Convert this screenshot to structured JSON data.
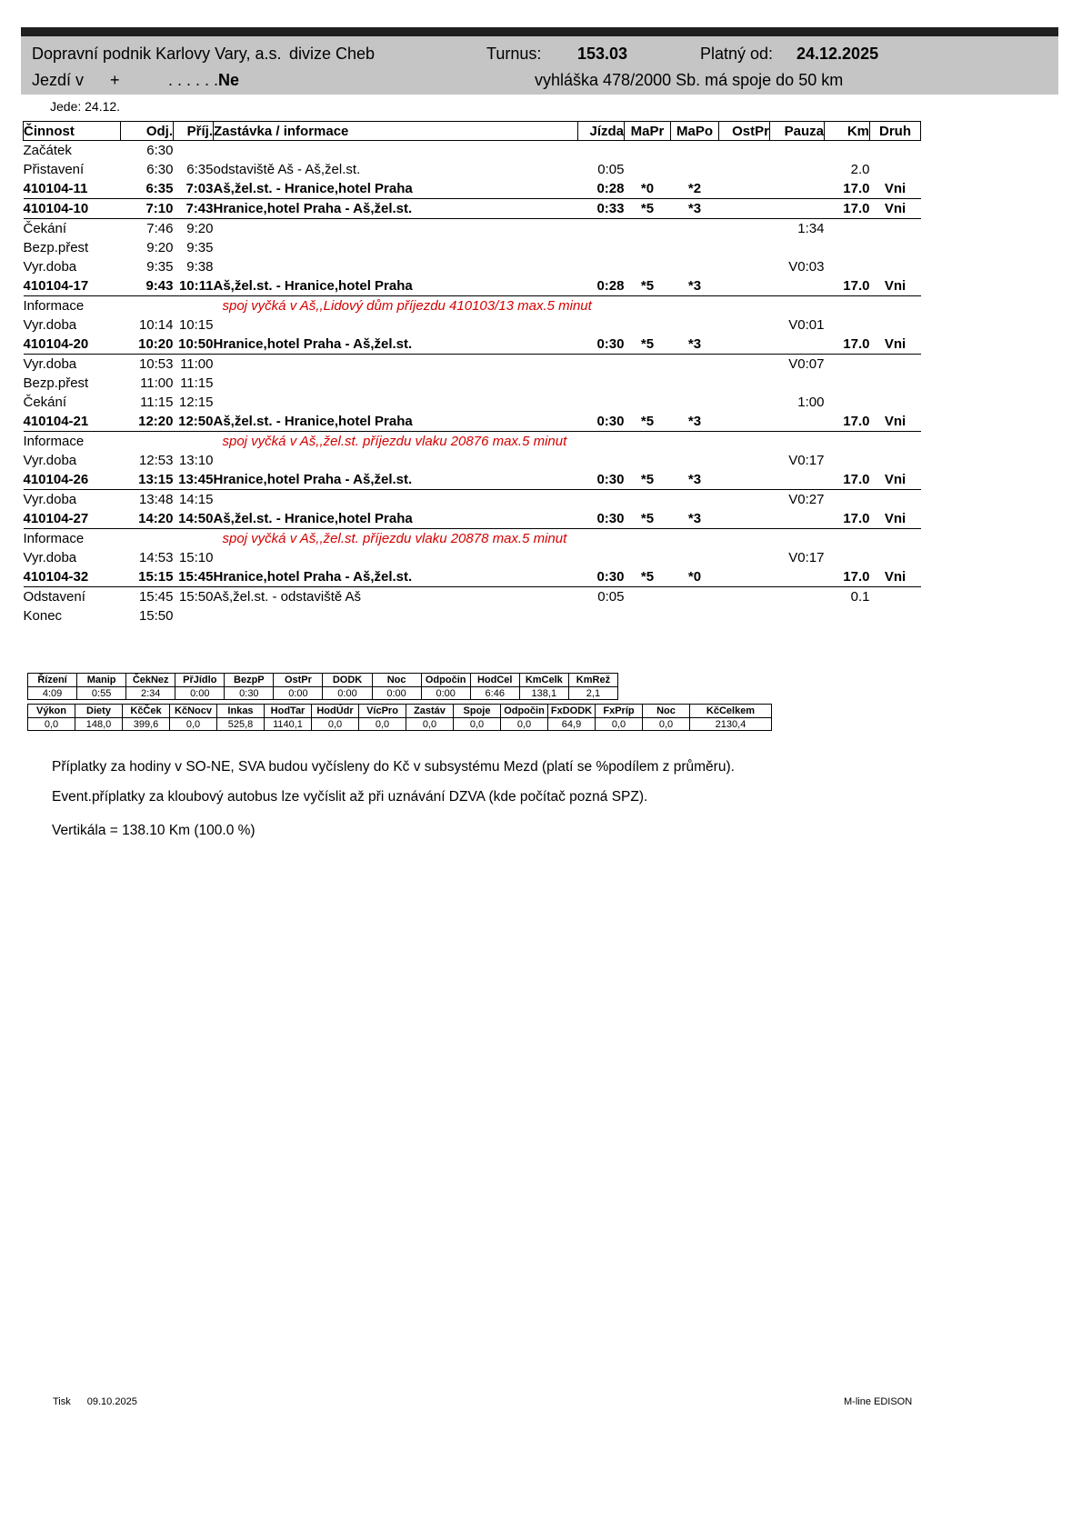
{
  "colors": {
    "header_bg": "#c5c5c5",
    "top_bar": "#1f1f1f",
    "info_red": "#d40000"
  },
  "header": {
    "company": "Dopravní podnik Karlovy Vary, a.s.",
    "division": "divize Cheb",
    "turnus_label": "Turnus:",
    "turnus_value": "153.03",
    "valid_label": "Platný od:",
    "valid_value": "24.12.2025",
    "runs_label": "Jezdí v",
    "runs_plus": "+",
    "runs_dots": ". . . . . .",
    "runs_days": "Ne",
    "decree": "vyhláška 478/2000 Sb. má spoje do 50 km",
    "operates": "Jede: 24.12."
  },
  "schedule": {
    "columns": [
      "Činnost",
      "Odj.",
      "Příj.",
      "Zastávka / informace",
      "Jízda",
      "MaPr",
      "MaPo",
      "OstPr",
      "Pauza",
      "Km",
      "Druh"
    ],
    "rows": [
      {
        "type": "plain",
        "cinnost": "Začátek",
        "odj": "6:30",
        "prij": "",
        "zastavka": "",
        "jizda": "",
        "mapr": "",
        "mapo": "",
        "ostpr": "",
        "pauza": "",
        "km": "",
        "druh": ""
      },
      {
        "type": "plain",
        "cinnost": "Přistavení",
        "odj": "6:30",
        "prij": "6:35",
        "zastavka": "odstaviště Aš - Aš,žel.st.",
        "jizda": "0:05",
        "mapr": "",
        "mapo": "",
        "ostpr": "",
        "pauza": "",
        "km": "2.0",
        "druh": ""
      },
      {
        "type": "trip",
        "cinnost": "410104-11",
        "odj": "6:35",
        "prij": "7:03",
        "zastavka": "Aš,žel.st. - Hranice,hotel Praha",
        "jizda": "0:28",
        "mapr": "*0",
        "mapo": "*2",
        "ostpr": "",
        "pauza": "",
        "km": "17.0",
        "druh": "Vni"
      },
      {
        "type": "trip",
        "cinnost": "410104-10",
        "odj": "7:10",
        "prij": "7:43",
        "zastavka": "Hranice,hotel Praha - Aš,žel.st.",
        "jizda": "0:33",
        "mapr": "*5",
        "mapo": "*3",
        "ostpr": "",
        "pauza": "",
        "km": "17.0",
        "druh": "Vni"
      },
      {
        "type": "plain",
        "cinnost": "Čekání",
        "odj": "7:46",
        "prij": "9:20",
        "zastavka": "",
        "jizda": "",
        "mapr": "",
        "mapo": "",
        "ostpr": "",
        "pauza": "1:34",
        "km": "",
        "druh": ""
      },
      {
        "type": "plain",
        "cinnost": "Bezp.přest",
        "odj": "9:20",
        "prij": "9:35",
        "zastavka": "",
        "jizda": "",
        "mapr": "",
        "mapo": "",
        "ostpr": "",
        "pauza": "",
        "km": "",
        "druh": ""
      },
      {
        "type": "plain",
        "cinnost": "Vyr.doba",
        "odj": "9:35",
        "prij": "9:38",
        "zastavka": "",
        "jizda": "",
        "mapr": "",
        "mapo": "",
        "ostpr": "",
        "pauza": "V0:03",
        "km": "",
        "druh": ""
      },
      {
        "type": "trip",
        "cinnost": "410104-17",
        "odj": "9:43",
        "prij": "10:11",
        "zastavka": "Aš,žel.st. - Hranice,hotel Praha",
        "jizda": "0:28",
        "mapr": "*5",
        "mapo": "*3",
        "ostpr": "",
        "pauza": "",
        "km": "17.0",
        "druh": "Vni"
      },
      {
        "type": "info",
        "cinnost": "Informace",
        "odj": "",
        "prij": "",
        "zastavka": "spoj vyčká v Aš,,Lidový dům příjezdu  410103/13 max.5 minut",
        "jizda": "",
        "mapr": "",
        "mapo": "",
        "ostpr": "",
        "pauza": "",
        "km": "",
        "druh": ""
      },
      {
        "type": "plain",
        "cinnost": "Vyr.doba",
        "odj": "10:14",
        "prij": "10:15",
        "zastavka": "",
        "jizda": "",
        "mapr": "",
        "mapo": "",
        "ostpr": "",
        "pauza": "V0:01",
        "km": "",
        "druh": ""
      },
      {
        "type": "trip",
        "cinnost": "410104-20",
        "odj": "10:20",
        "prij": "10:50",
        "zastavka": "Hranice,hotel Praha - Aš,žel.st.",
        "jizda": "0:30",
        "mapr": "*5",
        "mapo": "*3",
        "ostpr": "",
        "pauza": "",
        "km": "17.0",
        "druh": "Vni"
      },
      {
        "type": "plain",
        "cinnost": "Vyr.doba",
        "odj": "10:53",
        "prij": "11:00",
        "zastavka": "",
        "jizda": "",
        "mapr": "",
        "mapo": "",
        "ostpr": "",
        "pauza": "V0:07",
        "km": "",
        "druh": ""
      },
      {
        "type": "plain",
        "cinnost": "Bezp.přest",
        "odj": "11:00",
        "prij": "11:15",
        "zastavka": "",
        "jizda": "",
        "mapr": "",
        "mapo": "",
        "ostpr": "",
        "pauza": "",
        "km": "",
        "druh": ""
      },
      {
        "type": "plain",
        "cinnost": "Čekání",
        "odj": "11:15",
        "prij": "12:15",
        "zastavka": "",
        "jizda": "",
        "mapr": "",
        "mapo": "",
        "ostpr": "",
        "pauza": "1:00",
        "km": "",
        "druh": ""
      },
      {
        "type": "trip",
        "cinnost": "410104-21",
        "odj": "12:20",
        "prij": "12:50",
        "zastavka": "Aš,žel.st. - Hranice,hotel Praha",
        "jizda": "0:30",
        "mapr": "*5",
        "mapo": "*3",
        "ostpr": "",
        "pauza": "",
        "km": "17.0",
        "druh": "Vni"
      },
      {
        "type": "info",
        "cinnost": "Informace",
        "odj": "",
        "prij": "",
        "zastavka": "spoj vyčká v Aš,,žel.st. příjezdu vlaku 20876 max.5 minut",
        "jizda": "",
        "mapr": "",
        "mapo": "",
        "ostpr": "",
        "pauza": "",
        "km": "",
        "druh": ""
      },
      {
        "type": "plain",
        "cinnost": "Vyr.doba",
        "odj": "12:53",
        "prij": "13:10",
        "zastavka": "",
        "jizda": "",
        "mapr": "",
        "mapo": "",
        "ostpr": "",
        "pauza": "V0:17",
        "km": "",
        "druh": ""
      },
      {
        "type": "trip",
        "cinnost": "410104-26",
        "odj": "13:15",
        "prij": "13:45",
        "zastavka": "Hranice,hotel Praha - Aš,žel.st.",
        "jizda": "0:30",
        "mapr": "*5",
        "mapo": "*3",
        "ostpr": "",
        "pauza": "",
        "km": "17.0",
        "druh": "Vni"
      },
      {
        "type": "plain",
        "cinnost": "Vyr.doba",
        "odj": "13:48",
        "prij": "14:15",
        "zastavka": "",
        "jizda": "",
        "mapr": "",
        "mapo": "",
        "ostpr": "",
        "pauza": "V0:27",
        "km": "",
        "druh": ""
      },
      {
        "type": "trip",
        "cinnost": "410104-27",
        "odj": "14:20",
        "prij": "14:50",
        "zastavka": "Aš,žel.st. - Hranice,hotel Praha",
        "jizda": "0:30",
        "mapr": "*5",
        "mapo": "*3",
        "ostpr": "",
        "pauza": "",
        "km": "17.0",
        "druh": "Vni"
      },
      {
        "type": "info",
        "cinnost": "Informace",
        "odj": "",
        "prij": "",
        "zastavka": "spoj vyčká v Aš,,žel.st. příjezdu vlaku 20878 max.5 minut",
        "jizda": "",
        "mapr": "",
        "mapo": "",
        "ostpr": "",
        "pauza": "",
        "km": "",
        "druh": ""
      },
      {
        "type": "plain",
        "cinnost": "Vyr.doba",
        "odj": "14:53",
        "prij": "15:10",
        "zastavka": "",
        "jizda": "",
        "mapr": "",
        "mapo": "",
        "ostpr": "",
        "pauza": "V0:17",
        "km": "",
        "druh": ""
      },
      {
        "type": "trip",
        "cinnost": "410104-32",
        "odj": "15:15",
        "prij": "15:45",
        "zastavka": "Hranice,hotel Praha - Aš,žel.st.",
        "jizda": "0:30",
        "mapr": "*5",
        "mapo": "*0",
        "ostpr": "",
        "pauza": "",
        "km": "17.0",
        "druh": "Vni"
      },
      {
        "type": "plain",
        "cinnost": "Odstavení",
        "odj": "15:45",
        "prij": "15:50",
        "zastavka": "Aš,žel.st. - odstaviště Aš",
        "jizda": "0:05",
        "mapr": "",
        "mapo": "",
        "ostpr": "",
        "pauza": "",
        "km": "0.1",
        "druh": ""
      },
      {
        "type": "plain",
        "cinnost": "Konec",
        "odj": "15:50",
        "prij": "",
        "zastavka": "",
        "jizda": "",
        "mapr": "",
        "mapo": "",
        "ostpr": "",
        "pauza": "",
        "km": "",
        "druh": ""
      }
    ]
  },
  "summary1": {
    "columns": [
      "Řízení",
      "Manip",
      "ČekNez",
      "PřJídlo",
      "BezpP",
      "OstPr",
      "DODK",
      "Noc",
      "Odpočin",
      "HodCel",
      "KmCelk",
      "KmRež"
    ],
    "values": [
      "4:09",
      "0:55",
      "2:34",
      "0:00",
      "0:30",
      "0:00",
      "0:00",
      "0:00",
      "0:00",
      "6:46",
      "138,1",
      "2,1"
    ]
  },
  "summary2": {
    "columns": [
      "Výkon",
      "Diety",
      "KčČek",
      "KčNocv",
      "Inkas",
      "HodTar",
      "HodÚdr",
      "VícPro",
      "Zastáv",
      "Spoje",
      "Odpočin",
      "FxDODK",
      "FxPríp",
      "Noc",
      "KčCelkem"
    ],
    "values": [
      "0,0",
      "148,0",
      "399,6",
      "0,0",
      "525,8",
      "1140,1",
      "0,0",
      "0,0",
      "0,0",
      "0,0",
      "0,0",
      "64,9",
      "0,0",
      "0,0",
      "2130,4"
    ]
  },
  "notes": {
    "line1": "Příplatky za hodiny v SO-NE, SVA budou vyčísleny do Kč v subsystému Mezd (platí se %podílem z průměru).",
    "line2": "Event.příplatky za kloubový autobus lze vyčíslit až při uznávání DZVA (kde počítač pozná SPZ).",
    "vertikala": "Vertikála = 138.10 Km (100.0 %)"
  },
  "footer": {
    "print_label": "Tisk",
    "print_date": "09.10.2025",
    "app_name": "M-line EDISON"
  }
}
